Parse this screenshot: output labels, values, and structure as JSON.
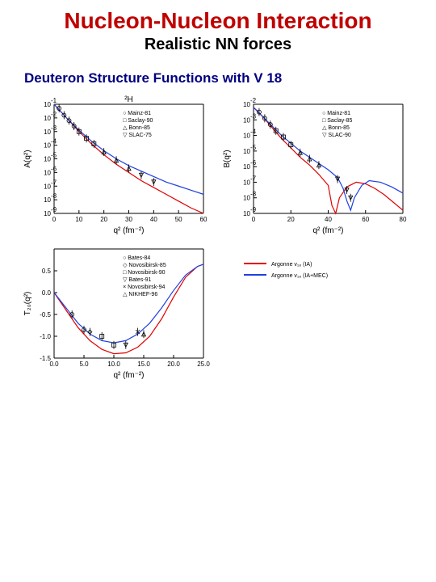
{
  "heading": {
    "title": "Nucleon-Nucleon Interaction",
    "subtitle": "Realistic NN forces",
    "caption": "Deuteron Structure Functions with V 18"
  },
  "charts": {
    "topLeft": {
      "type": "line-log",
      "supTitle": "²H",
      "xlabel": "q² (fm⁻²)",
      "ylabel": "A(q²)",
      "xlim": [
        0,
        60
      ],
      "xticks": [
        0,
        10,
        20,
        30,
        40,
        50,
        60
      ],
      "ylim_exp": [
        -9,
        -1
      ],
      "ytick_exp": [
        -1,
        -2,
        -3,
        -4,
        -5,
        -6,
        -7,
        -8,
        -9
      ],
      "legend": [
        "○ Mainz-81",
        "□ Saclay-90",
        "△ Bonn-85",
        "▽ SLAC-75"
      ],
      "series_red": {
        "color": "#e00000",
        "points": [
          [
            0,
            -1.0
          ],
          [
            5,
            -2.0
          ],
          [
            10,
            -3.0
          ],
          [
            15,
            -3.9
          ],
          [
            20,
            -4.7
          ],
          [
            25,
            -5.4
          ],
          [
            30,
            -6.0
          ],
          [
            35,
            -6.6
          ],
          [
            40,
            -7.1
          ],
          [
            45,
            -7.6
          ],
          [
            50,
            -8.1
          ],
          [
            55,
            -8.6
          ],
          [
            60,
            -9.0
          ]
        ]
      },
      "series_blue": {
        "color": "#2040e0",
        "points": [
          [
            0,
            -1.0
          ],
          [
            5,
            -2.0
          ],
          [
            10,
            -2.9
          ],
          [
            15,
            -3.7
          ],
          [
            20,
            -4.4
          ],
          [
            25,
            -5.0
          ],
          [
            30,
            -5.5
          ],
          [
            35,
            -5.9
          ],
          [
            40,
            -6.3
          ],
          [
            45,
            -6.7
          ],
          [
            50,
            -7.0
          ],
          [
            55,
            -7.3
          ],
          [
            60,
            -7.6
          ]
        ]
      },
      "markers": [
        {
          "sym": "circle",
          "pts": [
            [
              2,
              -1.3
            ],
            [
              4,
              -1.8
            ],
            [
              6,
              -2.2
            ],
            [
              8,
              -2.6
            ]
          ]
        },
        {
          "sym": "square",
          "pts": [
            [
              10,
              -3.0
            ],
            [
              13,
              -3.5
            ],
            [
              16,
              -3.9
            ]
          ]
        },
        {
          "sym": "tri",
          "pts": [
            [
              20,
              -4.5
            ],
            [
              25,
              -5.1
            ],
            [
              30,
              -5.7
            ]
          ]
        },
        {
          "sym": "triD",
          "pts": [
            [
              35,
              -6.2
            ],
            [
              40,
              -6.7
            ]
          ]
        }
      ]
    },
    "topRight": {
      "type": "line-log",
      "xlabel": "q² (fm⁻²)",
      "ylabel": "B(q²)",
      "xlim": [
        0,
        80
      ],
      "xticks": [
        0,
        20,
        40,
        60,
        80
      ],
      "ylim_exp": [
        -9,
        -2
      ],
      "ytick_exp": [
        -2,
        -3,
        -4,
        -5,
        -6,
        -7,
        -8,
        -9
      ],
      "legend": [
        "○ Mainz-81",
        "□ Saclay-85",
        "△ Bonn-85",
        "▽ SLAC-90"
      ],
      "series_red": {
        "color": "#e00000",
        "points": [
          [
            0,
            -2.2
          ],
          [
            5,
            -2.8
          ],
          [
            10,
            -3.5
          ],
          [
            15,
            -4.2
          ],
          [
            20,
            -4.8
          ],
          [
            25,
            -5.4
          ],
          [
            30,
            -5.9
          ],
          [
            35,
            -6.5
          ],
          [
            40,
            -7.2
          ],
          [
            42,
            -8.5
          ],
          [
            44,
            -9.0
          ],
          [
            46,
            -8.0
          ],
          [
            50,
            -7.3
          ],
          [
            55,
            -7.0
          ],
          [
            60,
            -7.1
          ],
          [
            65,
            -7.4
          ],
          [
            70,
            -7.8
          ],
          [
            75,
            -8.3
          ],
          [
            80,
            -8.8
          ]
        ]
      },
      "series_blue": {
        "color": "#2040e0",
        "points": [
          [
            0,
            -2.2
          ],
          [
            5,
            -2.8
          ],
          [
            10,
            -3.4
          ],
          [
            15,
            -4.0
          ],
          [
            20,
            -4.5
          ],
          [
            25,
            -5.0
          ],
          [
            30,
            -5.4
          ],
          [
            35,
            -5.8
          ],
          [
            40,
            -6.2
          ],
          [
            45,
            -6.7
          ],
          [
            48,
            -7.4
          ],
          [
            50,
            -8.2
          ],
          [
            52,
            -8.8
          ],
          [
            54,
            -8.0
          ],
          [
            58,
            -7.2
          ],
          [
            62,
            -6.9
          ],
          [
            68,
            -7.0
          ],
          [
            74,
            -7.3
          ],
          [
            80,
            -7.7
          ]
        ]
      },
      "markers": [
        {
          "sym": "circle",
          "pts": [
            [
              3,
              -2.5
            ],
            [
              6,
              -2.9
            ],
            [
              9,
              -3.3
            ]
          ]
        },
        {
          "sym": "square",
          "pts": [
            [
              12,
              -3.7
            ],
            [
              16,
              -4.1
            ],
            [
              20,
              -4.6
            ]
          ]
        },
        {
          "sym": "tri",
          "pts": [
            [
              25,
              -5.1
            ],
            [
              30,
              -5.5
            ],
            [
              35,
              -5.9
            ]
          ]
        },
        {
          "sym": "triD",
          "pts": [
            [
              45,
              -6.8
            ],
            [
              50,
              -7.5
            ],
            [
              52,
              -8.0
            ]
          ]
        }
      ]
    },
    "bottomLeft": {
      "type": "line",
      "xlabel": "q² (fm⁻²)",
      "ylabel": "T₂₀(q²)",
      "xlim": [
        0,
        25
      ],
      "xticks": [
        0,
        5,
        10,
        15,
        20,
        25
      ],
      "xtick_labels": [
        "0.0",
        "5.0",
        "10.0",
        "15.0",
        "20.0",
        "25.0"
      ],
      "ylim": [
        -1.5,
        1.0
      ],
      "yticks": [
        -1.5,
        -1.0,
        -0.5,
        0.0,
        0.5
      ],
      "legend": [
        "○ Bates-84",
        "◇ Novosibirsk-85",
        "□ Novosibirsk-90",
        "▽ Bates-91",
        "× Novosibirsk-94",
        "△ NIKHEF-96"
      ],
      "series_red": {
        "color": "#e00000",
        "points": [
          [
            0,
            0.0
          ],
          [
            2,
            -0.4
          ],
          [
            4,
            -0.8
          ],
          [
            6,
            -1.1
          ],
          [
            8,
            -1.3
          ],
          [
            10,
            -1.4
          ],
          [
            12,
            -1.38
          ],
          [
            14,
            -1.25
          ],
          [
            16,
            -1.0
          ],
          [
            18,
            -0.6
          ],
          [
            20,
            -0.1
          ],
          [
            22,
            0.35
          ],
          [
            24,
            0.6
          ],
          [
            25,
            0.65
          ]
        ]
      },
      "series_blue": {
        "color": "#2040e0",
        "points": [
          [
            0,
            0.0
          ],
          [
            2,
            -0.35
          ],
          [
            4,
            -0.7
          ],
          [
            6,
            -0.95
          ],
          [
            8,
            -1.1
          ],
          [
            10,
            -1.15
          ],
          [
            12,
            -1.1
          ],
          [
            14,
            -0.95
          ],
          [
            16,
            -0.7
          ],
          [
            18,
            -0.35
          ],
          [
            20,
            0.05
          ],
          [
            22,
            0.4
          ],
          [
            24,
            0.6
          ],
          [
            25,
            0.65
          ]
        ]
      },
      "markers": [
        {
          "sym": "circle",
          "pts": [
            [
              3,
              -0.5
            ],
            [
              5,
              -0.85
            ]
          ]
        },
        {
          "sym": "diamond",
          "pts": [
            [
              6,
              -0.9
            ]
          ]
        },
        {
          "sym": "square",
          "pts": [
            [
              8,
              -1.0
            ],
            [
              10,
              -1.2
            ]
          ]
        },
        {
          "sym": "triD",
          "pts": [
            [
              12,
              -1.2
            ]
          ]
        },
        {
          "sym": "x",
          "pts": [
            [
              14,
              -0.9
            ]
          ]
        },
        {
          "sym": "tri",
          "pts": [
            [
              15,
              -0.95
            ]
          ]
        }
      ]
    },
    "legend": {
      "lines": [
        {
          "color": "#e00000",
          "label": "Argonne v₁₈ (IA)"
        },
        {
          "color": "#2040e0",
          "label": "Argonne v₁₈ (IA+MEC)"
        }
      ]
    }
  },
  "style": {
    "bg": "#ffffff",
    "axis_color": "#000000",
    "title_color": "#c00000",
    "caption_color": "#000080",
    "tick_fontsize": 8,
    "label_fontsize": 10,
    "legend_fontsize": 7,
    "marker_size": 2.5,
    "line_width": 1.2
  }
}
